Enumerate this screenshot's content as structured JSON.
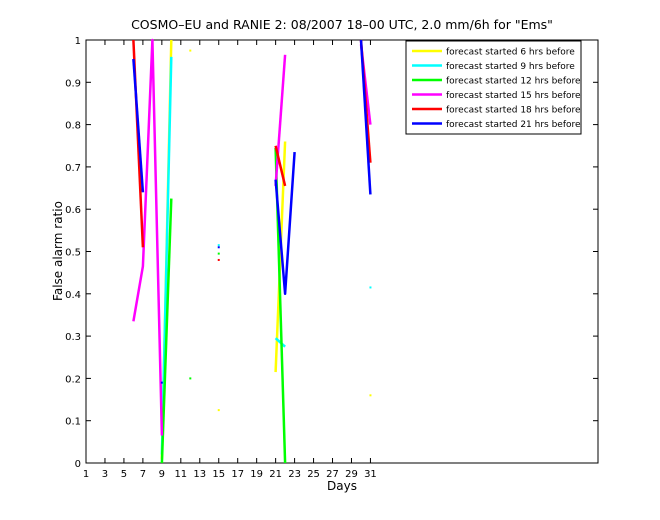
{
  "chart_data": {
    "type": "line",
    "title": "COSMO–EU and RANIE 2: 08/2007 18–00 UTC, 2.0 mm/6h for \"Ems\"",
    "xlabel": "Days",
    "ylabel": "False alarm ratio",
    "xlim": [
      1,
      55
    ],
    "ylim": [
      0,
      1
    ],
    "xticks": [
      1,
      3,
      5,
      7,
      9,
      11,
      13,
      15,
      17,
      19,
      21,
      23,
      25,
      27,
      29,
      31
    ],
    "yticks": [
      0,
      0.1,
      0.2,
      0.3,
      0.4,
      0.5,
      0.6,
      0.7,
      0.8,
      0.9,
      1
    ],
    "grid": false,
    "legend_position": "top-right",
    "series": [
      {
        "name": "forecast started 6 hrs before",
        "color": "#ffff00",
        "points": [
          [
            9,
            0.01
          ],
          [
            10,
            1.0
          ],
          [
            null,
            null
          ],
          [
            12,
            0.975
          ],
          [
            null,
            null
          ],
          [
            15,
            0.125
          ],
          [
            null,
            null
          ],
          [
            21,
            0.215
          ],
          [
            22,
            0.76
          ],
          [
            null,
            null
          ],
          [
            31,
            0.16
          ]
        ]
      },
      {
        "name": "forecast started 9 hrs before",
        "color": "#00ffff",
        "points": [
          [
            9,
            0.02
          ],
          [
            10,
            0.96
          ],
          [
            null,
            null
          ],
          [
            15,
            0.515
          ],
          [
            null,
            null
          ],
          [
            21,
            0.295
          ],
          [
            22,
            0.275
          ],
          [
            null,
            null
          ],
          [
            31,
            0.415
          ]
        ]
      },
      {
        "name": "forecast started 12 hrs before",
        "color": "#00ff00",
        "points": [
          [
            9,
            0.0
          ],
          [
            10,
            0.625
          ],
          [
            null,
            null
          ],
          [
            12,
            0.2
          ],
          [
            null,
            null
          ],
          [
            15,
            0.495
          ],
          [
            null,
            null
          ],
          [
            21,
            0.745
          ],
          [
            22,
            0.0
          ]
        ]
      },
      {
        "name": "forecast started 15 hrs before",
        "color": "#ff00ff",
        "points": [
          [
            6,
            0.335
          ],
          [
            7,
            0.465
          ],
          [
            8,
            1.0
          ],
          [
            9,
            0.065
          ],
          [
            null,
            null
          ],
          [
            21,
            0.655
          ],
          [
            22,
            0.965
          ],
          [
            null,
            null
          ],
          [
            30,
            0.99
          ],
          [
            31,
            0.8
          ]
        ]
      },
      {
        "name": "forecast started 18 hrs before",
        "color": "#ff0000",
        "points": [
          [
            6,
            1.0
          ],
          [
            7,
            0.51
          ],
          [
            null,
            null
          ],
          [
            15,
            0.48
          ],
          [
            null,
            null
          ],
          [
            21,
            0.75
          ],
          [
            22,
            0.655
          ],
          [
            null,
            null
          ],
          [
            30,
            1.0
          ],
          [
            31,
            0.71
          ]
        ]
      },
      {
        "name": "forecast started 21 hrs before",
        "color": "#0000ff",
        "points": [
          [
            6,
            0.955
          ],
          [
            7,
            0.64
          ],
          [
            null,
            null
          ],
          [
            9,
            0.19
          ],
          [
            null,
            null
          ],
          [
            15,
            0.51
          ],
          [
            null,
            null
          ],
          [
            21,
            0.67
          ],
          [
            22,
            0.4
          ],
          [
            23,
            0.735
          ],
          [
            null,
            null
          ],
          [
            30,
            1.0
          ],
          [
            31,
            0.635
          ]
        ]
      }
    ]
  }
}
